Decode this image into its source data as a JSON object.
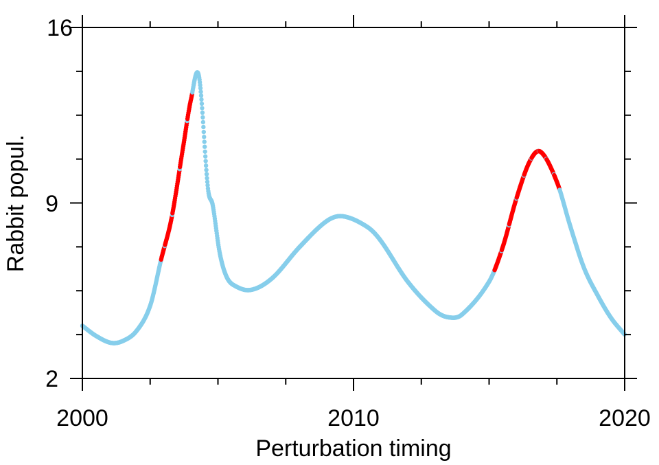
{
  "chart_data": {
    "type": "scatter",
    "title": "",
    "xlabel": "Perturbation timing",
    "ylabel": "Rabbit popul.",
    "xlim": [
      2000,
      2020
    ],
    "ylim": [
      2,
      16
    ],
    "xticks": [
      2000,
      2010,
      2020
    ],
    "xtick_labels": [
      "2000",
      "2010",
      "2020"
    ],
    "yticks": [
      2,
      9,
      16
    ],
    "ytick_labels": [
      "2",
      "9",
      "16"
    ],
    "grid": false,
    "legend": "none",
    "colors": {
      "default": "#87ceeb",
      "highlight": "#ff0000"
    },
    "curve": [
      [
        2000,
        4.1
      ],
      [
        2000.5,
        3.7
      ],
      [
        2001.06,
        3.42
      ],
      [
        2001.5,
        3.5
      ],
      [
        2002,
        3.9
      ],
      [
        2002.5,
        4.9
      ],
      [
        2002.91,
        6.77
      ],
      [
        2003.29,
        8.4
      ],
      [
        2003.72,
        11.26
      ],
      [
        2004.0,
        13.1
      ],
      [
        2004.3,
        14.05
      ],
      [
        2004.63,
        9.6
      ],
      [
        2004.81,
        8.9
      ],
      [
        2005.06,
        7.04
      ],
      [
        2005.3,
        6.1
      ],
      [
        2005.57,
        5.73
      ],
      [
        2006.2,
        5.53
      ],
      [
        2007,
        6.0
      ],
      [
        2008,
        7.23
      ],
      [
        2009,
        8.27
      ],
      [
        2009.6,
        8.47
      ],
      [
        2010.5,
        8.05
      ],
      [
        2011,
        7.5
      ],
      [
        2012,
        5.86
      ],
      [
        2013,
        4.71
      ],
      [
        2013.5,
        4.44
      ],
      [
        2014,
        4.55
      ],
      [
        2015,
        5.86
      ],
      [
        2015.5,
        7.23
      ],
      [
        2016,
        9.15
      ],
      [
        2016.5,
        10.66
      ],
      [
        2016.9,
        11.04
      ],
      [
        2017.5,
        9.84
      ],
      [
        2018,
        8.05
      ],
      [
        2018.5,
        6.41
      ],
      [
        2019,
        5.32
      ],
      [
        2019.5,
        4.41
      ],
      [
        2020,
        3.75
      ]
    ],
    "highlight_ranges": [
      [
        2002.9,
        2004.05
      ],
      [
        2015.2,
        2017.6
      ]
    ]
  }
}
